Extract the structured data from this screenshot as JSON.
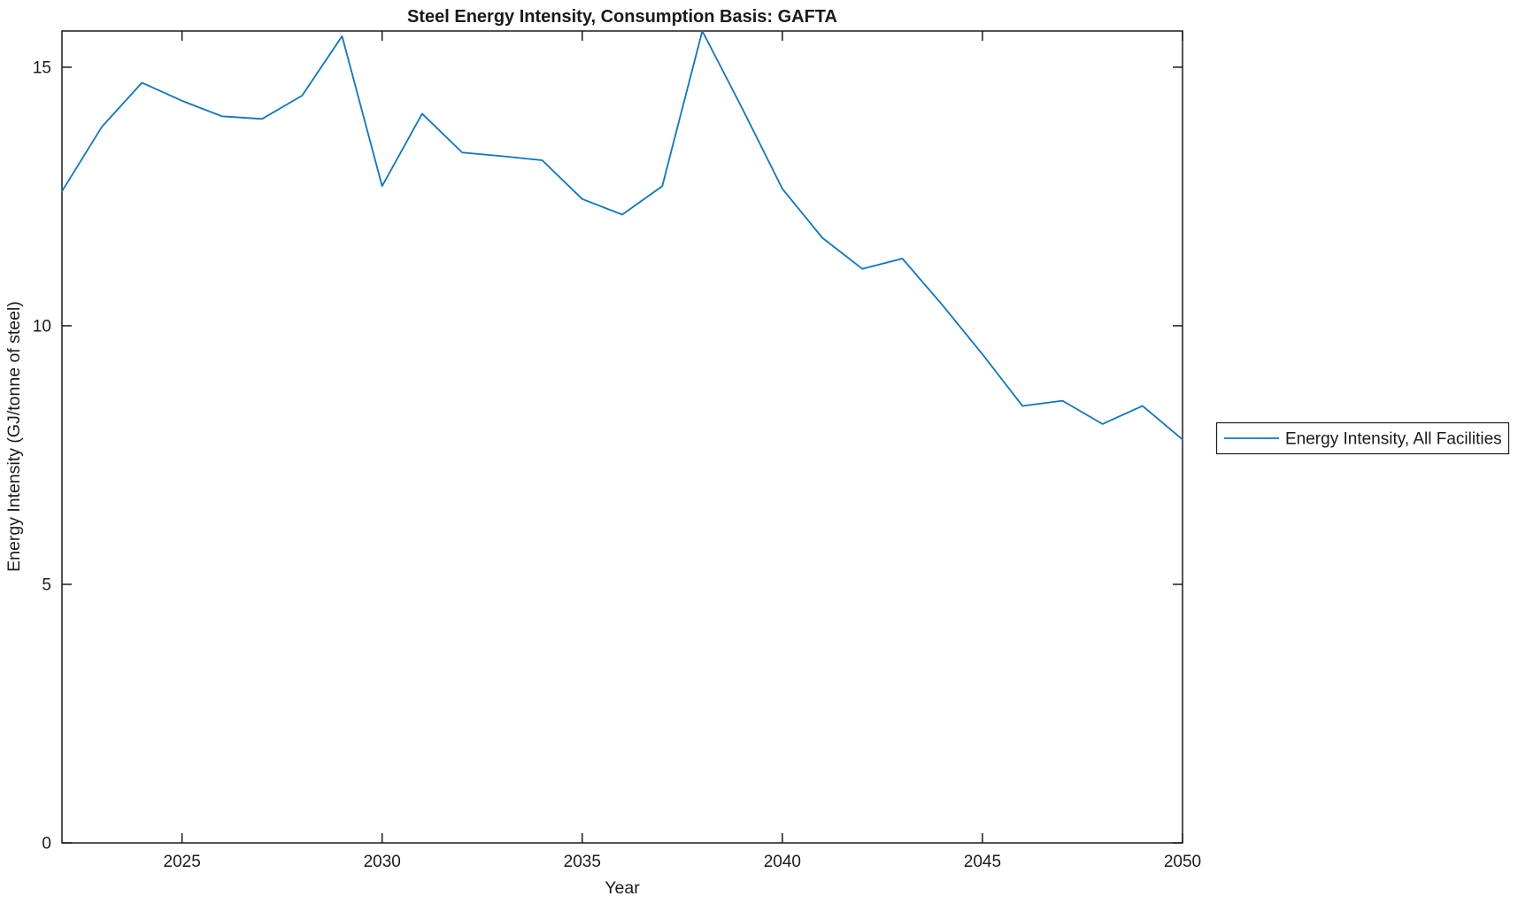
{
  "chart_data": {
    "type": "line",
    "title": "Steel Energy Intensity, Consumption Basis: GAFTA",
    "xlabel": "Year",
    "ylabel": "Energy Intensity (GJ/tonne of steel)",
    "xlim": [
      2022,
      2050
    ],
    "ylim": [
      0,
      15.7
    ],
    "xticks": [
      2025,
      2030,
      2035,
      2040,
      2045,
      2050
    ],
    "yticks": [
      0,
      5,
      10,
      15
    ],
    "grid": false,
    "tick_direction": "in",
    "box": true,
    "legend": {
      "position": "outside-right",
      "entries": [
        {
          "label": "Energy Intensity, All Facilities",
          "color": "#0c76c2"
        }
      ]
    },
    "series": [
      {
        "name": "Energy Intensity, All Facilities",
        "color": "#0c76c2",
        "x": [
          2022,
          2023,
          2024,
          2025,
          2026,
          2027,
          2028,
          2029,
          2030,
          2031,
          2032,
          2033,
          2034,
          2035,
          2036,
          2037,
          2038,
          2039,
          2040,
          2041,
          2042,
          2043,
          2044,
          2045,
          2046,
          2047,
          2048,
          2049,
          2050
        ],
        "y": [
          12.6,
          13.85,
          14.7,
          14.35,
          14.05,
          14.0,
          14.45,
          15.6,
          12.7,
          14.1,
          13.35,
          13.28,
          13.2,
          12.45,
          12.15,
          12.7,
          15.7,
          14.2,
          12.65,
          11.7,
          11.1,
          11.3,
          10.4,
          9.45,
          8.45,
          8.55,
          8.1,
          8.45,
          7.8
        ]
      }
    ]
  },
  "colors": {
    "background": "#ffffff",
    "axis": "#1a1a1a",
    "accent": "#0c76c2"
  }
}
